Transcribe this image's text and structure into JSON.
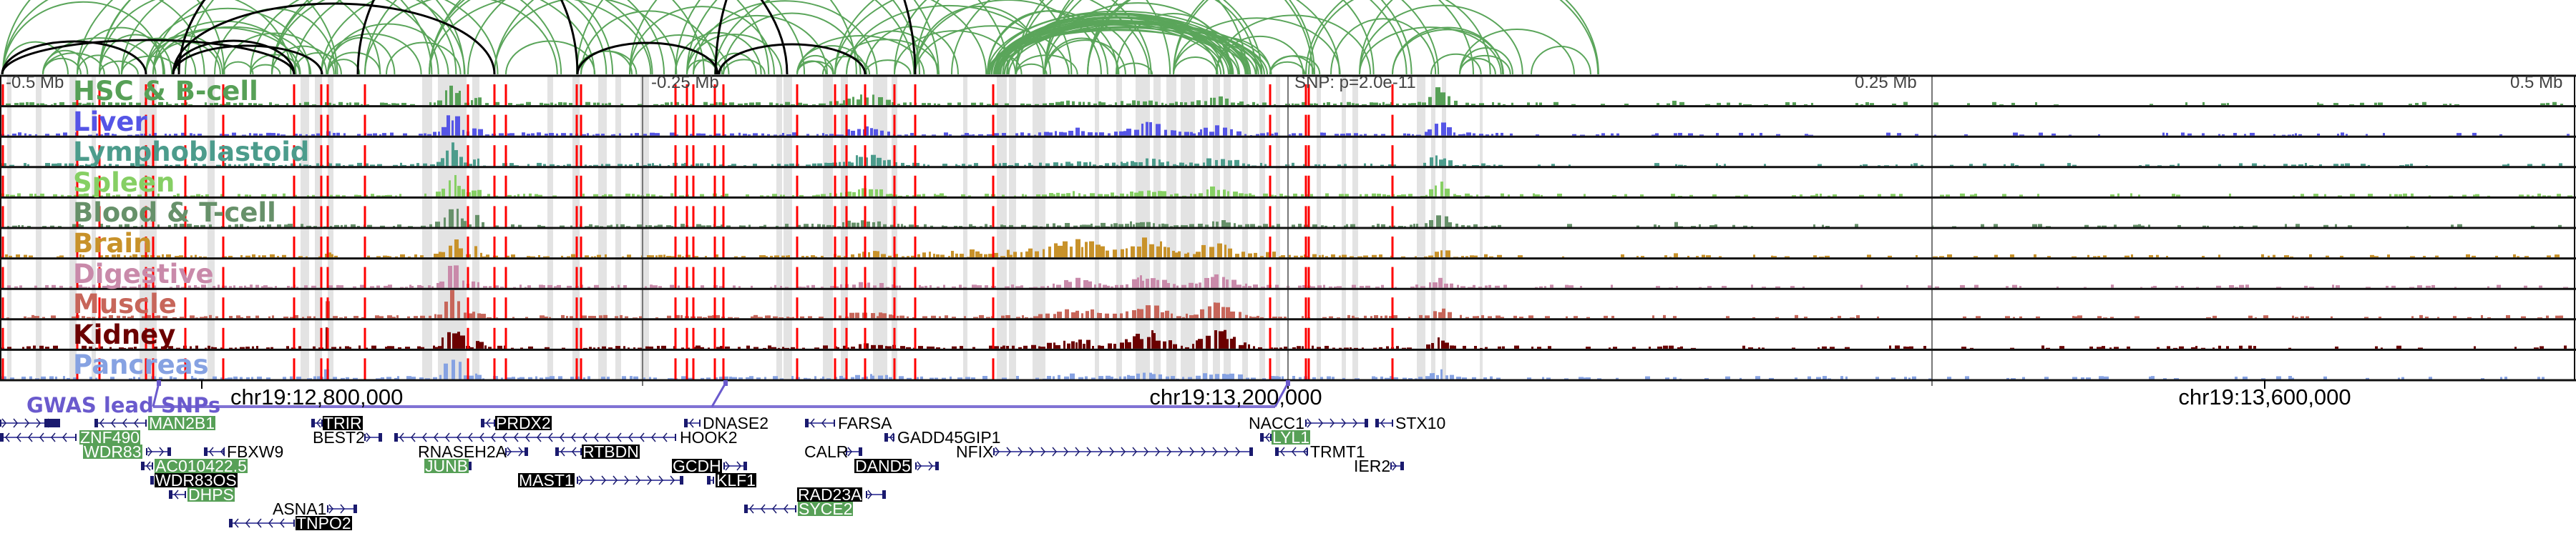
{
  "ruler": {
    "offset_labels": [
      "-0.5 Mb",
      "-0.25 Mb",
      "0.25 Mb",
      "0.5 Mb"
    ],
    "snp_label": "SNP: p=2.0e-11",
    "coordinate_labels": [
      "chr19:12,800,000",
      "chr19:13,200,000",
      "chr19:13,600,000"
    ]
  },
  "tracks": [
    {
      "label": "HSC & B-cell",
      "color": "#57a057"
    },
    {
      "label": "Liver",
      "color": "#5555e6"
    },
    {
      "label": "Lymphoblastoid",
      "color": "#4c9c8c"
    },
    {
      "label": "Spleen",
      "color": "#86cf64"
    },
    {
      "label": "Blood & T-cell",
      "color": "#67916a"
    },
    {
      "label": "Brain",
      "color": "#c8922a"
    },
    {
      "label": "Digestive",
      "color": "#c98aaa"
    },
    {
      "label": "Muscle",
      "color": "#c7665a"
    },
    {
      "label": "Kidney",
      "color": "#6b0000"
    },
    {
      "label": "Pancreas",
      "color": "#86a2e2"
    }
  ],
  "gwas": {
    "label": "GWAS lead SNPs",
    "color": "#6a5acd"
  },
  "colors": {
    "loop_arc": "#5aa55a",
    "loop_arc_highlight": "#000000",
    "snp_marker": "#ff0000",
    "highlight_band": "#e3e3e3",
    "gene_model": "#1a1a6e"
  },
  "genes": [
    {
      "name": "MAN2B1",
      "style": "green",
      "strand": "-"
    },
    {
      "name": "TRIR",
      "style": "black",
      "strand": "-"
    },
    {
      "name": "PRDX2",
      "style": "black",
      "strand": "-"
    },
    {
      "name": "DNASE2",
      "style": "plain",
      "strand": "-"
    },
    {
      "name": "FARSA",
      "style": "plain",
      "strand": "-"
    },
    {
      "name": "NACC1",
      "style": "plain",
      "strand": "+"
    },
    {
      "name": "STX10",
      "style": "plain",
      "strand": "-"
    },
    {
      "name": "ZNF490",
      "style": "green",
      "strand": "-"
    },
    {
      "name": "BEST2",
      "style": "plain",
      "strand": "+"
    },
    {
      "name": "HOOK2",
      "style": "plain",
      "strand": "-"
    },
    {
      "name": "GADD45GIP1",
      "style": "plain",
      "strand": "-"
    },
    {
      "name": "LYL1",
      "style": "green",
      "strand": "-"
    },
    {
      "name": "WDR83",
      "style": "green",
      "strand": "+"
    },
    {
      "name": "FBXW9",
      "style": "plain",
      "strand": "-"
    },
    {
      "name": "RNASEH2A",
      "style": "plain",
      "strand": "+"
    },
    {
      "name": "RTBDN",
      "style": "black",
      "strand": "-"
    },
    {
      "name": "CALR",
      "style": "plain",
      "strand": "+"
    },
    {
      "name": "NFIX",
      "style": "plain",
      "strand": "+"
    },
    {
      "name": "TRMT1",
      "style": "plain",
      "strand": "-"
    },
    {
      "name": "AC010422.5",
      "style": "green",
      "strand": "-"
    },
    {
      "name": "JUNB",
      "style": "green",
      "strand": "+"
    },
    {
      "name": "GCDH",
      "style": "black",
      "strand": "+"
    },
    {
      "name": "DAND5",
      "style": "black",
      "strand": "+"
    },
    {
      "name": "IER2",
      "style": "plain",
      "strand": "+"
    },
    {
      "name": "WDR83OS",
      "style": "black",
      "strand": "-"
    },
    {
      "name": "MAST1",
      "style": "black",
      "strand": "+"
    },
    {
      "name": "KLF1",
      "style": "black",
      "strand": "-"
    },
    {
      "name": "DHPS",
      "style": "green",
      "strand": "-"
    },
    {
      "name": "RAD23A",
      "style": "black",
      "strand": "+"
    },
    {
      "name": "ASNA1",
      "style": "plain",
      "strand": "+"
    },
    {
      "name": "SYCE2",
      "style": "green",
      "strand": "-"
    },
    {
      "name": "TNPO2",
      "style": "black",
      "strand": "-"
    }
  ]
}
